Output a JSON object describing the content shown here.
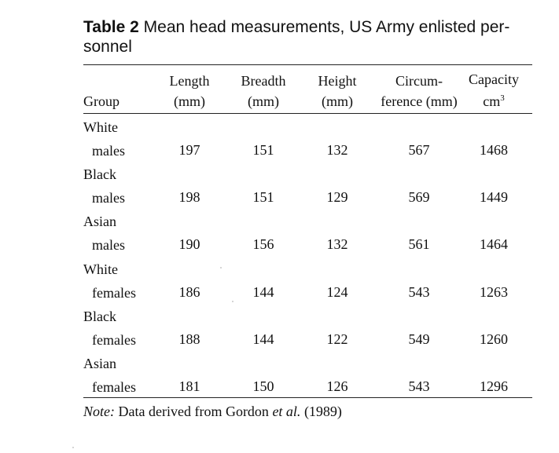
{
  "table": {
    "caption_label": "Table 2",
    "caption_text": "Mean head measurements, US Army enlisted personnel",
    "caption_line1": " Mean head measurements, US Army enlisted per-",
    "caption_line2": "sonnel",
    "headers": {
      "group": "Group",
      "length_top": "Length",
      "length_unit": "(mm)",
      "breadth_top": "Breadth",
      "breadth_unit": "(mm)",
      "height_top": "Height",
      "height_unit": "(mm)",
      "circ_top": "Circum-",
      "circ_unit": "ference (mm)",
      "capacity_top": "Capacity",
      "capacity_unit": "cm",
      "capacity_sup": "3"
    },
    "rows": [
      {
        "group_line1": "White",
        "group_line2": "males",
        "length": "197",
        "breadth": "151",
        "height": "132",
        "circumference": "567",
        "capacity": "1468"
      },
      {
        "group_line1": "Black",
        "group_line2": "males",
        "length": "198",
        "breadth": "151",
        "height": "129",
        "circumference": "569",
        "capacity": "1449"
      },
      {
        "group_line1": "Asian",
        "group_line2": "males",
        "length": "190",
        "breadth": "156",
        "height": "132",
        "circumference": "561",
        "capacity": "1464"
      },
      {
        "group_line1": "White",
        "group_line2": "females",
        "length": "186",
        "breadth": "144",
        "height": "124",
        "circumference": "543",
        "capacity": "1263"
      },
      {
        "group_line1": "Black",
        "group_line2": "females",
        "length": "188",
        "breadth": "144",
        "height": "122",
        "circumference": "549",
        "capacity": "1260"
      },
      {
        "group_line1": "Asian",
        "group_line2": "females",
        "length": "181",
        "breadth": "150",
        "height": "126",
        "circumference": "543",
        "capacity": "1296"
      }
    ],
    "note_label": "Note:",
    "note_text_1": " Data derived from Gordon ",
    "note_etal": "et al.",
    "note_text_2": " (1989)"
  }
}
